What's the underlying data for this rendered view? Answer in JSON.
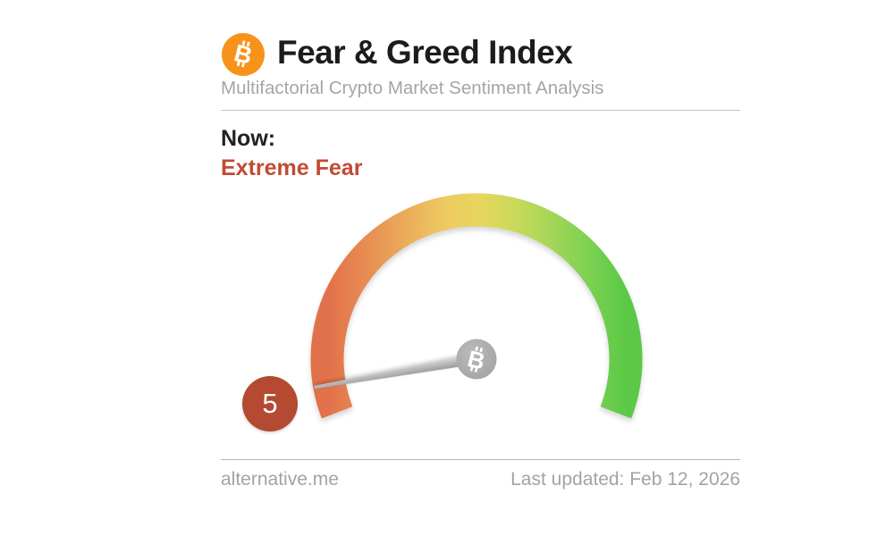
{
  "header": {
    "logo_icon": "bitcoin-icon",
    "title": "Fear & Greed Index",
    "subtitle": "Multifactorial Crypto Market Sentiment Analysis"
  },
  "now": {
    "label": "Now:",
    "classification": "Extreme Fear",
    "value_badge": "5"
  },
  "footer": {
    "site_link": "alternative.me",
    "last_updated": "Last updated: Feb 12, 2026"
  },
  "colors": {
    "bitcoin_orange": "#f7931a",
    "title_text": "#1c1c1c",
    "muted_text": "#a5a5a5",
    "classification_red": "#c14b33",
    "badge_red": "#b34a31",
    "needle_gray": "#a8a8a8",
    "hub_gray": "#ababab",
    "divider_gray": "#c4c4c4"
  },
  "chart_data": {
    "type": "gauge",
    "title": "Fear & Greed Index",
    "value": 5,
    "min": 0,
    "max": 100,
    "classification": "Extreme Fear",
    "arc_sweep_degrees": 222,
    "legend_position": "none",
    "scale_gradient": [
      {
        "offset": "0%",
        "color": "#e1714b"
      },
      {
        "offset": "12%",
        "color": "#e78a51"
      },
      {
        "offset": "26%",
        "color": "#ebab5a"
      },
      {
        "offset": "40%",
        "color": "#edcb60"
      },
      {
        "offset": "52%",
        "color": "#e6d75f"
      },
      {
        "offset": "64%",
        "color": "#c6d95a"
      },
      {
        "offset": "78%",
        "color": "#9bd556"
      },
      {
        "offset": "90%",
        "color": "#76cf50"
      },
      {
        "offset": "100%",
        "color": "#5bc947"
      }
    ]
  }
}
